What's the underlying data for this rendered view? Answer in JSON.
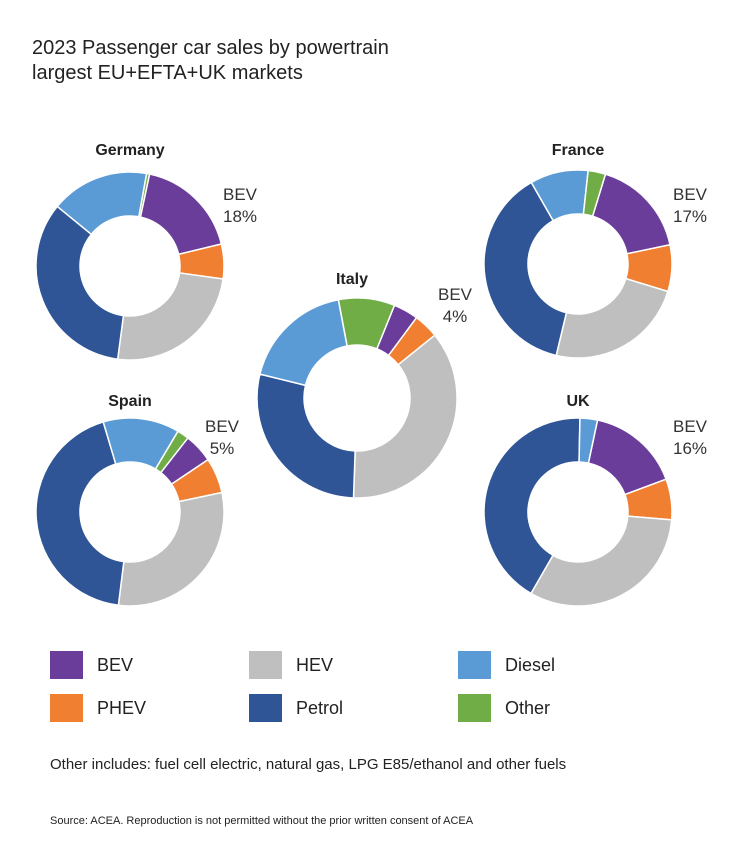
{
  "title_line1": "2023 Passenger car sales by powertrain",
  "title_line2": "largest EU+EFTA+UK markets",
  "legend": [
    {
      "key": "bev",
      "label": "BEV",
      "color": "#6a3d9a"
    },
    {
      "key": "phev",
      "label": "PHEV",
      "color": "#f07f31"
    },
    {
      "key": "hev",
      "label": "HEV",
      "color": "#bfbfbf"
    },
    {
      "key": "petrol",
      "label": "Petrol",
      "color": "#2f5597"
    },
    {
      "key": "diesel",
      "label": "Diesel",
      "color": "#5b9bd5"
    },
    {
      "key": "other",
      "label": "Other",
      "color": "#70ad47"
    }
  ],
  "note": "Other includes: fuel cell electric, natural gas, LPG E85/ethanol and other fuels",
  "source": "Source: ACEA. Reproduction is not permitted without the prior written consent of ACEA",
  "chart_data": [
    {
      "type": "pie",
      "title": "Germany",
      "categories": [
        "BEV",
        "PHEV",
        "HEV",
        "Petrol",
        "Diesel",
        "Other"
      ],
      "values": [
        18,
        6,
        25,
        34,
        17,
        0.5
      ],
      "callout": {
        "label": "BEV",
        "value": "18%"
      }
    },
    {
      "type": "pie",
      "title": "France",
      "categories": [
        "BEV",
        "PHEV",
        "HEV",
        "Petrol",
        "Diesel",
        "Other"
      ],
      "values": [
        17,
        8,
        24,
        38,
        10,
        3
      ],
      "callout": {
        "label": "BEV",
        "value": "17%"
      }
    },
    {
      "type": "pie",
      "title": "Italy",
      "categories": [
        "BEV",
        "PHEV",
        "HEV",
        "Petrol",
        "Diesel",
        "Other"
      ],
      "values": [
        4,
        4,
        36,
        28,
        18,
        9
      ],
      "callout": {
        "label": "BEV",
        "value": "4%"
      }
    },
    {
      "type": "pie",
      "title": "Spain",
      "categories": [
        "BEV",
        "PHEV",
        "HEV",
        "Petrol",
        "Diesel",
        "Other"
      ],
      "values": [
        5,
        6,
        30,
        43,
        13,
        2
      ],
      "callout": {
        "label": "BEV",
        "value": "5%"
      }
    },
    {
      "type": "pie",
      "title": "UK",
      "categories": [
        "BEV",
        "PHEV",
        "HEV",
        "Petrol",
        "Diesel",
        "Other"
      ],
      "values": [
        16,
        7,
        32,
        42,
        3,
        0
      ],
      "callout": {
        "label": "BEV",
        "value": "16%"
      }
    }
  ]
}
